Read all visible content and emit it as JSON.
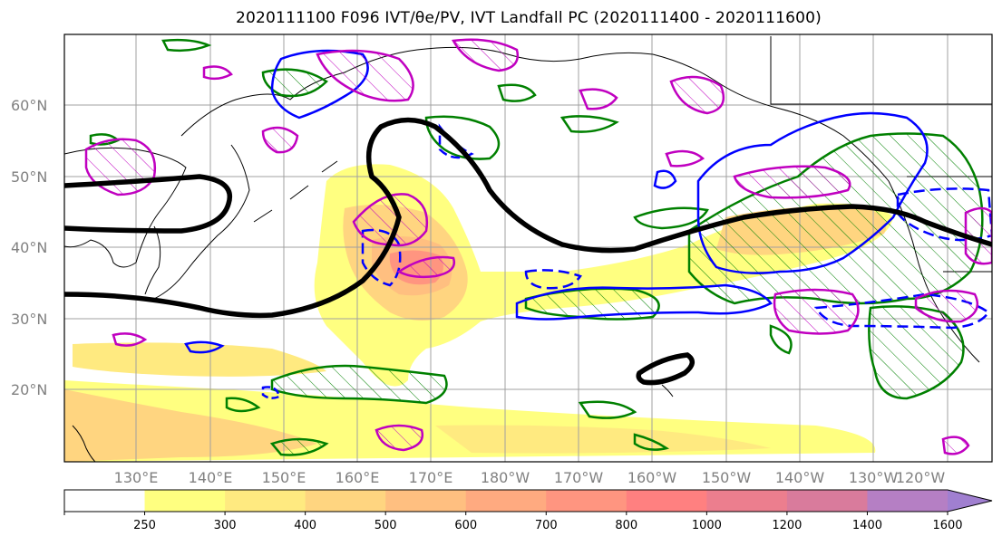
{
  "title": "2020111100 F096 IVT/θe/PV, IVT Landfall PC (2020111400 - 2020111600)",
  "map": {
    "lat_labels": [
      "60°N",
      "50°N",
      "40°N",
      "30°N",
      "20°N"
    ],
    "lon_labels": [
      "130°E",
      "140°E",
      "150°E",
      "160°E",
      "170°E",
      "180°W",
      "170°W",
      "160°W",
      "150°W",
      "140°W",
      "130°W",
      "120°W"
    ]
  },
  "colorbar": {
    "ticks": [
      "250",
      "300",
      "400",
      "500",
      "600",
      "700",
      "800",
      "1000",
      "1200",
      "1400",
      "1600"
    ],
    "colors": [
      "#ffffff",
      "#ffff80",
      "#ffea80",
      "#ffd580",
      "#ffbf80",
      "#ffaa80",
      "#ff9580",
      "#ff8080",
      "#ec7e8e",
      "#d97b9c",
      "#b57fc4",
      "#a07fd0"
    ]
  },
  "legend_colors": {
    "contour_black": "#000000",
    "contour_green": "#008000",
    "contour_blue": "#0000ff",
    "contour_magenta": "#c000c0"
  }
}
